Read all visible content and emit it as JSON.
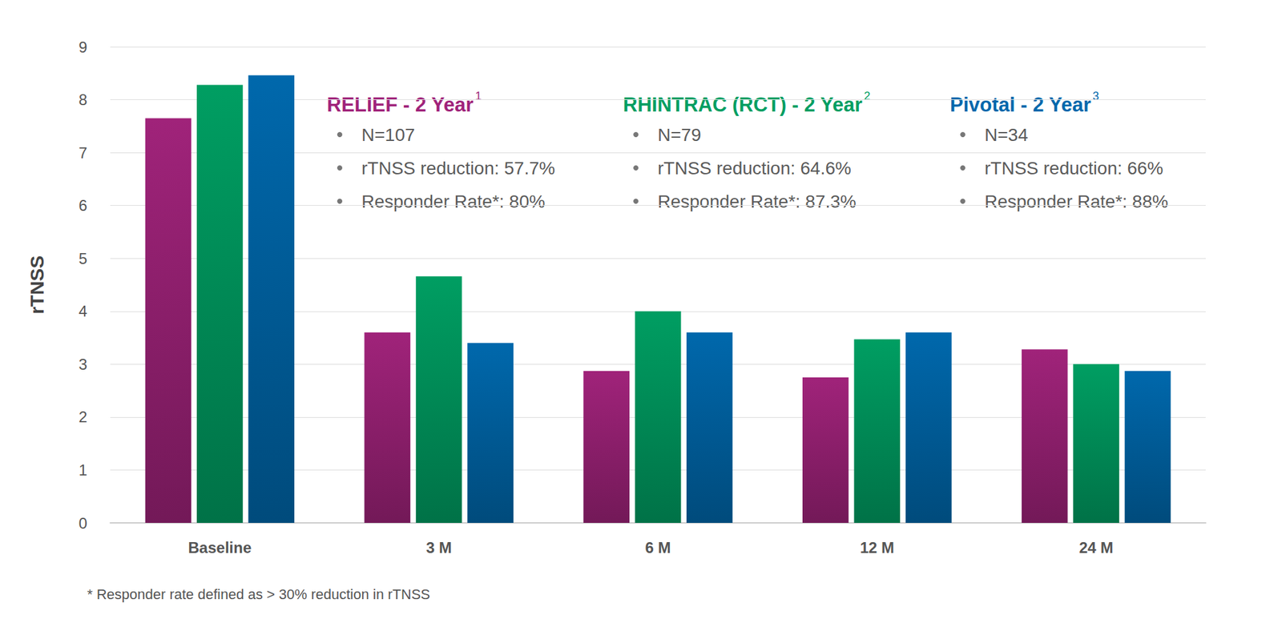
{
  "chart_data": {
    "type": "bar",
    "y_label": "rTNSS",
    "categories": [
      "Baseline",
      "3 M",
      "6 M",
      "12 M",
      "24 M"
    ],
    "series": [
      {
        "name": "RELIEF - 2 Year",
        "superscript": "1",
        "color": "#a0237a",
        "values": [
          7.65,
          3.6,
          2.87,
          2.75,
          3.28
        ],
        "details": [
          "N=107",
          "rTNSS reduction: 57.7%",
          "Responder Rate*: 80%"
        ]
      },
      {
        "name": "RHINTRAC (RCT) - 2 Year",
        "superscript": "2",
        "color": "#009e62",
        "values": [
          8.28,
          4.66,
          4.0,
          3.47,
          3.0
        ],
        "details": [
          "N=79",
          "rTNSS reduction: 64.6%",
          "Responder Rate*: 87.3%"
        ]
      },
      {
        "name": "Pivotal - 2 Year",
        "superscript": "3",
        "color": "#0068ac",
        "values": [
          8.46,
          3.4,
          3.6,
          3.6,
          2.87
        ],
        "details": [
          "N=34",
          "rTNSS reduction: 66%",
          "Responder Rate*: 88%"
        ]
      }
    ],
    "ylim": [
      0,
      9
    ],
    "yticks": [
      0,
      1,
      2,
      3,
      4,
      5,
      6,
      7,
      8,
      9
    ],
    "grid": true,
    "footnote": "* Responder rate defined as > 30% reduction in rTNSS"
  }
}
